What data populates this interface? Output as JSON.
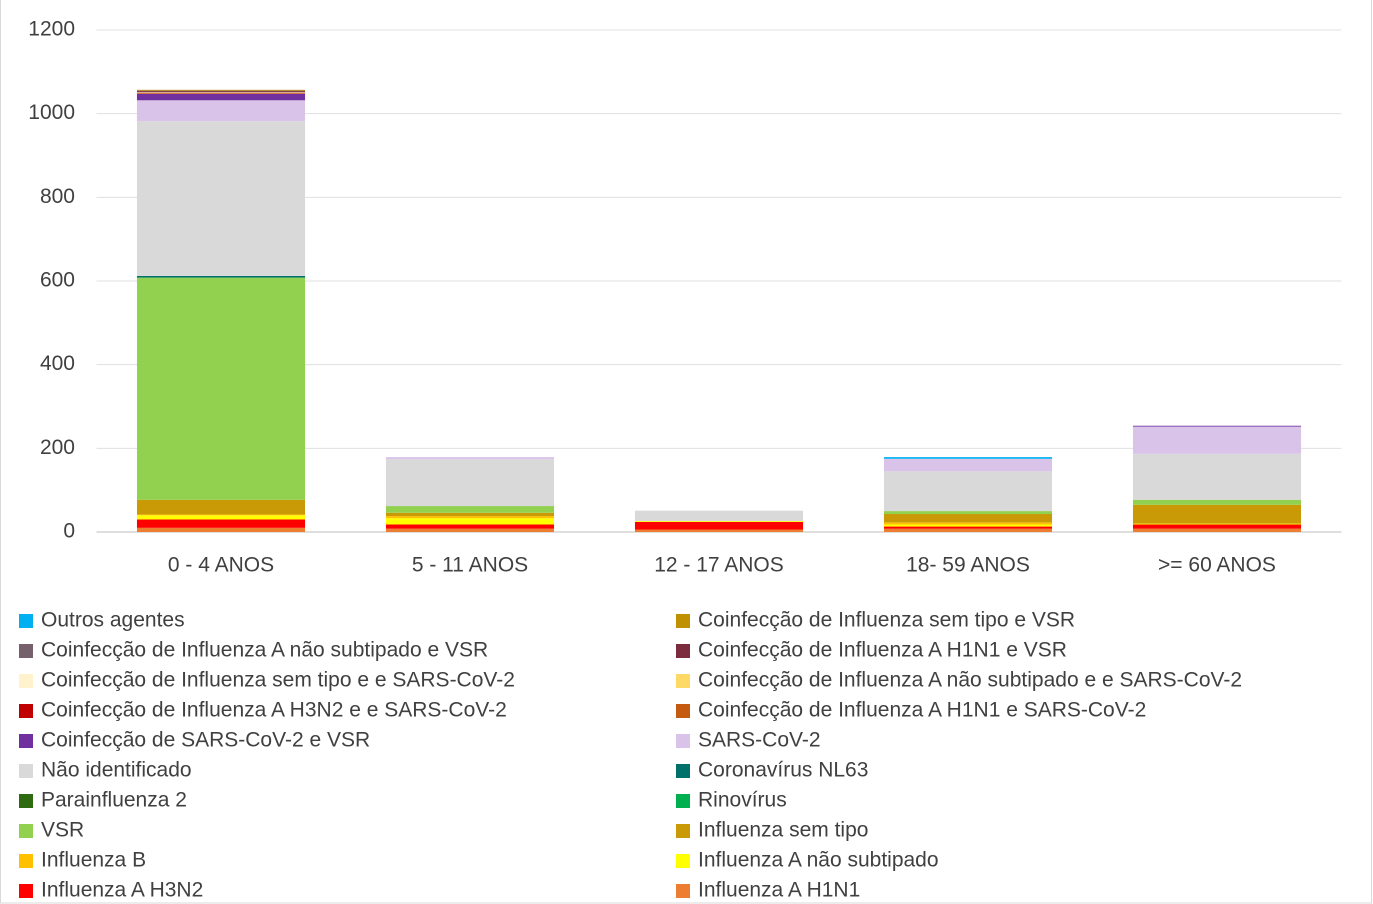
{
  "chart_data": {
    "type": "stacked_bar",
    "categories": [
      "0 - 4 ANOS",
      "5 - 11 ANOS",
      "12 - 17 ANOS",
      "18- 59 ANOS",
      ">= 60 ANOS"
    ],
    "ylim": [
      0,
      1200
    ],
    "yticks": [
      0,
      200,
      400,
      600,
      800,
      1000,
      1200
    ],
    "grid": true,
    "series": [
      {
        "name": "Influenza A H1N1",
        "color": "#ed7d31",
        "values": [
          10,
          8,
          6,
          8,
          8
        ]
      },
      {
        "name": "Influenza A H3N2",
        "color": "#ff0000",
        "values": [
          20,
          10,
          18,
          5,
          10
        ]
      },
      {
        "name": "Influenza A não subtipado",
        "color": "#ffff00",
        "values": [
          10,
          15,
          2,
          5,
          2
        ]
      },
      {
        "name": "Influenza B",
        "color": "#ffc000",
        "values": [
          2,
          5,
          0,
          5,
          0
        ]
      },
      {
        "name": "Influenza sem tipo",
        "color": "#c99a06",
        "values": [
          35,
          8,
          0,
          20,
          45
        ]
      },
      {
        "name": "VSR",
        "color": "#92d050",
        "values": [
          530,
          16,
          0,
          7,
          12
        ]
      },
      {
        "name": "Rinovírus",
        "color": "#00b050",
        "values": [
          1,
          0,
          0,
          0,
          0
        ]
      },
      {
        "name": "Parainfluenza 2",
        "color": "#2e6b10",
        "values": [
          1,
          0,
          0,
          0,
          0
        ]
      },
      {
        "name": "Coronavírus NL63",
        "color": "#00706b",
        "values": [
          3,
          0,
          0,
          0,
          0
        ]
      },
      {
        "name": "Não identificado",
        "color": "#d9d9d9",
        "values": [
          370,
          112,
          25,
          95,
          110
        ]
      },
      {
        "name": "SARS-CoV-2",
        "color": "#d9c3e9",
        "values": [
          50,
          5,
          0,
          30,
          65
        ]
      },
      {
        "name": "Coinfecção de SARS-CoV-2 e VSR",
        "color": "#7030a0",
        "values": [
          15,
          0,
          0,
          0,
          2
        ]
      },
      {
        "name": "Coinfecção de Influenza A H1N1 e  SARS-CoV-2",
        "color": "#c55a11",
        "values": [
          1,
          0,
          0,
          0,
          0
        ]
      },
      {
        "name": "Coinfecção de Influenza A H3N2 e e SARS-CoV-2",
        "color": "#c00000",
        "values": [
          1,
          0,
          0,
          0,
          0
        ]
      },
      {
        "name": "Coinfecção de Influenza A não subtipado e e SARS-CoV-2",
        "color": "#ffd966",
        "values": [
          1,
          0,
          0,
          0,
          0
        ]
      },
      {
        "name": "Coinfecção de Influenza sem tipo e e SARS-CoV-2",
        "color": "#fff2cc",
        "values": [
          1,
          0,
          0,
          0,
          0
        ]
      },
      {
        "name": "Coinfecção de Influenza A H1N1 e  VSR",
        "color": "#7b2c3d",
        "values": [
          3,
          0,
          0,
          0,
          0
        ]
      },
      {
        "name": "Coinfecção de Influenza A não subtipado e  VSR",
        "color": "#76606b",
        "values": [
          1,
          0,
          0,
          0,
          0
        ]
      },
      {
        "name": "Coinfecção de Influenza sem tipo e  VSR",
        "color": "#bf9000",
        "values": [
          2,
          0,
          0,
          0,
          0
        ]
      },
      {
        "name": "Outros agentes",
        "color": "#00b0f0",
        "values": [
          0,
          0,
          0,
          4,
          0
        ]
      }
    ]
  }
}
